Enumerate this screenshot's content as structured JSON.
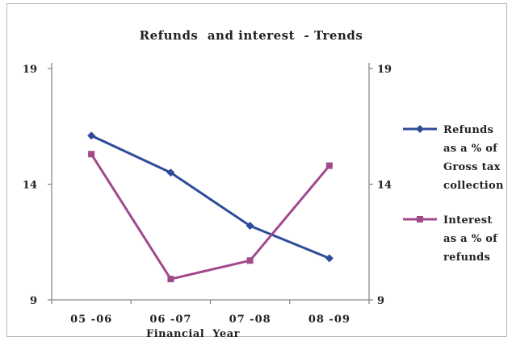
{
  "chart_data": {
    "type": "line",
    "title": "Refunds  and interest  - Trends",
    "xlabel": "Financial  Year",
    "ylabel": "",
    "ylim": [
      9,
      19
    ],
    "y_ticks": [
      "19",
      "14",
      "9"
    ],
    "y2_ticks": [
      "19",
      "14",
      "9"
    ],
    "categories": [
      "05 -06",
      "06 -07",
      "07 -08",
      "08 -09"
    ],
    "series": [
      {
        "name": "Refunds as a % of Gross tax collection",
        "legend_lines": [
          "Refunds",
          "as a % of",
          "Gross tax",
          "collection"
        ],
        "color": "#2e4c9a",
        "marker": "diamond",
        "values": [
          16.1,
          14.5,
          12.2,
          10.8
        ]
      },
      {
        "name": "Interest as a % of refunds",
        "legend_lines": [
          "Interest",
          "as a % of",
          "refunds"
        ],
        "color": "#a2498c",
        "marker": "square",
        "values": [
          15.3,
          9.9,
          10.7,
          14.8
        ]
      }
    ],
    "grid": false,
    "legend_position": "right"
  }
}
